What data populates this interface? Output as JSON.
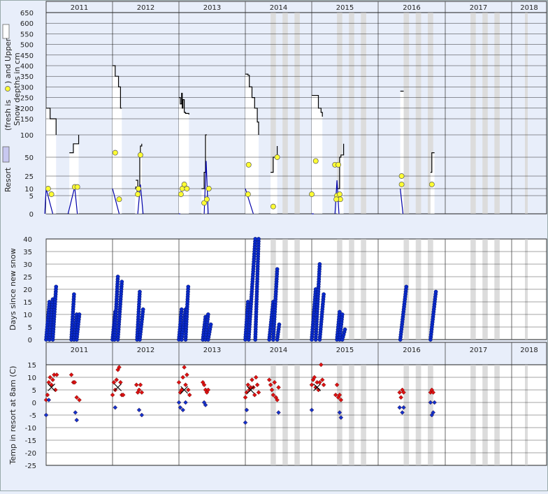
{
  "years": [
    "2011",
    "2012",
    "2013",
    "2014",
    "2015",
    "2016",
    "2017",
    "2018"
  ],
  "colors": {
    "background": "#e8eefa",
    "plot_bg": "#ffffff",
    "upper_depth_line": "#000000",
    "resort_depth_line": "#0000aa",
    "resort_fill": "#c8c8f0",
    "fresh_snow_marker": "#ffff33",
    "days_marker": "#0a2acc",
    "temp_warm": "#dd1111",
    "temp_cold": "#1133cc",
    "no_data_band": "#dcdcdc",
    "grid": "#000000"
  },
  "chart_data": [
    {
      "type": "area",
      "panel": "snow-depth",
      "ylabel_parts": [
        "Resort",
        "(fresh is",
        ")  and Upper",
        "Snow depths in cm"
      ],
      "yticks": [
        0,
        5,
        10,
        25,
        50,
        100,
        150,
        200,
        250,
        300,
        350,
        400,
        450,
        500,
        550,
        600,
        650
      ],
      "ylim": [
        0,
        650
      ],
      "upper_depth_segments": [
        [
          [
            2011.0,
            200
          ],
          [
            2011.05,
            200
          ],
          [
            2011.06,
            150
          ],
          [
            2011.14,
            150
          ],
          [
            2011.15,
            100
          ]
        ],
        [
          [
            2011.35,
            60
          ],
          [
            2011.4,
            60
          ],
          [
            2011.41,
            80
          ],
          [
            2011.48,
            80
          ],
          [
            2011.49,
            100
          ]
        ],
        [
          [
            2012.0,
            400
          ],
          [
            2012.03,
            400
          ],
          [
            2012.04,
            350
          ],
          [
            2012.08,
            350
          ],
          [
            2012.09,
            300
          ],
          [
            2012.12,
            200
          ],
          [
            2012.14,
            200
          ]
        ],
        [
          [
            2012.35,
            20
          ],
          [
            2012.38,
            12
          ],
          [
            2012.41,
            60
          ],
          [
            2012.42,
            75
          ],
          [
            2012.44,
            80
          ]
        ],
        [
          [
            2012.34,
            10
          ],
          [
            2012.35,
            12
          ],
          [
            2012.37,
            8
          ]
        ],
        [
          [
            2013.0,
            250
          ],
          [
            2013.02,
            220
          ],
          [
            2013.04,
            270
          ],
          [
            2013.05,
            200
          ],
          [
            2013.06,
            240
          ],
          [
            2013.08,
            180
          ],
          [
            2013.1,
            175
          ],
          [
            2013.12,
            175
          ],
          [
            2013.15,
            170
          ]
        ],
        [
          [
            2013.34,
            10
          ],
          [
            2013.38,
            30
          ],
          [
            2013.4,
            100
          ],
          [
            2013.42,
            100
          ]
        ],
        [
          [
            2014.0,
            360
          ],
          [
            2014.04,
            355
          ],
          [
            2014.06,
            300
          ],
          [
            2014.1,
            250
          ],
          [
            2014.14,
            200
          ],
          [
            2014.18,
            140
          ],
          [
            2014.2,
            100
          ]
        ],
        [
          [
            2014.38,
            30
          ],
          [
            2014.42,
            50
          ],
          [
            2014.46,
            50
          ],
          [
            2014.48,
            75
          ]
        ],
        [
          [
            2015.0,
            260
          ],
          [
            2015.08,
            260
          ],
          [
            2015.1,
            200
          ],
          [
            2015.14,
            180
          ],
          [
            2015.16,
            160
          ]
        ],
        [
          [
            2015.38,
            10
          ],
          [
            2015.42,
            50
          ],
          [
            2015.44,
            55
          ],
          [
            2015.48,
            80
          ]
        ],
        [
          [
            2016.33,
            280
          ],
          [
            2016.38,
            280
          ]
        ],
        [
          [
            2016.78,
            30
          ],
          [
            2016.8,
            60
          ],
          [
            2016.84,
            60
          ]
        ]
      ],
      "resort_depth_segments": [
        [
          [
            2010.98,
            0
          ],
          [
            2011.0,
            10
          ],
          [
            2011.1,
            0
          ]
        ],
        [
          [
            2011.33,
            0
          ],
          [
            2011.43,
            12
          ],
          [
            2011.47,
            0
          ]
        ],
        [
          [
            2012.0,
            10
          ],
          [
            2012.1,
            0
          ]
        ],
        [
          [
            2012.38,
            0
          ],
          [
            2012.42,
            15
          ],
          [
            2012.46,
            0
          ]
        ],
        [
          [
            2013.0,
            0
          ],
          [
            2013.02,
            0
          ]
        ],
        [
          [
            2013.38,
            0
          ],
          [
            2013.41,
            45
          ],
          [
            2013.44,
            0
          ]
        ],
        [
          [
            2014.0,
            10
          ],
          [
            2014.12,
            0
          ]
        ],
        [
          [
            2015.0,
            0
          ],
          [
            2015.03,
            0
          ]
        ],
        [
          [
            2015.35,
            0
          ],
          [
            2015.38,
            20
          ],
          [
            2015.41,
            0
          ]
        ],
        [
          [
            2016.33,
            10
          ],
          [
            2016.37,
            0
          ]
        ]
      ],
      "fresh_snow_points": [
        [
          2011.03,
          10
        ],
        [
          2011.08,
          6
        ],
        [
          2011.43,
          12
        ],
        [
          2011.47,
          12
        ],
        [
          2012.04,
          60
        ],
        [
          2012.1,
          4
        ],
        [
          2012.38,
          6
        ],
        [
          2012.39,
          10
        ],
        [
          2012.42,
          55
        ],
        [
          2013.03,
          6
        ],
        [
          2013.05,
          10
        ],
        [
          2013.08,
          15
        ],
        [
          2013.12,
          10
        ],
        [
          2013.38,
          3
        ],
        [
          2013.42,
          4
        ],
        [
          2013.45,
          10
        ],
        [
          2014.05,
          40
        ],
        [
          2014.04,
          6
        ],
        [
          2014.42,
          2
        ],
        [
          2014.48,
          50
        ],
        [
          2015.0,
          6
        ],
        [
          2015.06,
          45
        ],
        [
          2015.35,
          40
        ],
        [
          2015.4,
          40
        ],
        [
          2015.38,
          5
        ],
        [
          2015.42,
          6
        ],
        [
          2015.43,
          4
        ],
        [
          2015.37,
          4
        ],
        [
          2016.35,
          25
        ],
        [
          2016.35,
          15
        ],
        [
          2016.8,
          15
        ]
      ],
      "shaded_bands": [
        [
          2014.38,
          2014.46
        ],
        [
          2014.56,
          2014.64
        ],
        [
          2014.74,
          2014.82
        ],
        [
          2015.38,
          2015.46
        ],
        [
          2015.56,
          2015.64
        ],
        [
          2015.74,
          2015.82
        ],
        [
          2016.38,
          2016.46
        ],
        [
          2016.56,
          2016.64
        ],
        [
          2016.74,
          2016.82
        ],
        [
          2017.38,
          2017.46
        ],
        [
          2017.56,
          2017.64
        ],
        [
          2017.74,
          2017.82
        ],
        [
          2018.38,
          2018.46
        ]
      ]
    },
    {
      "type": "scatter",
      "panel": "days-since-new-snow",
      "ylabel": "Days since new snow",
      "yticks": [
        0,
        5,
        10,
        15,
        20,
        25,
        30,
        35,
        40
      ],
      "ylim": [
        0,
        40
      ],
      "ramps": [
        [
          2011.0,
          0,
          2011.05,
          15
        ],
        [
          2011.05,
          0,
          2011.1,
          16
        ],
        [
          2011.1,
          0,
          2011.15,
          21
        ],
        [
          2011.38,
          0,
          2011.42,
          18
        ],
        [
          2011.42,
          0,
          2011.46,
          10
        ],
        [
          2011.46,
          0,
          2011.5,
          10
        ],
        [
          2012.0,
          0,
          2012.04,
          11
        ],
        [
          2012.03,
          0,
          2012.08,
          25
        ],
        [
          2012.08,
          0,
          2012.14,
          23
        ],
        [
          2012.37,
          0,
          2012.41,
          19
        ],
        [
          2012.41,
          0,
          2012.46,
          12
        ],
        [
          2013.0,
          0,
          2013.04,
          12
        ],
        [
          2013.04,
          0,
          2013.1,
          12
        ],
        [
          2013.1,
          0,
          2013.14,
          21
        ],
        [
          2013.36,
          0,
          2013.4,
          9
        ],
        [
          2013.4,
          0,
          2013.44,
          10
        ],
        [
          2013.44,
          0,
          2013.48,
          6
        ],
        [
          2014.0,
          0,
          2014.04,
          15
        ],
        [
          2014.05,
          0,
          2014.15,
          40
        ],
        [
          2014.15,
          0,
          2014.2,
          40
        ],
        [
          2014.36,
          0,
          2014.42,
          15
        ],
        [
          2014.42,
          0,
          2014.48,
          28
        ],
        [
          2014.48,
          0,
          2014.51,
          6
        ],
        [
          2015.0,
          0,
          2015.06,
          20
        ],
        [
          2015.06,
          0,
          2015.12,
          30
        ],
        [
          2015.12,
          0,
          2015.18,
          18
        ],
        [
          2015.38,
          0,
          2015.42,
          11
        ],
        [
          2015.42,
          0,
          2015.46,
          10
        ],
        [
          2015.46,
          0,
          2015.5,
          4
        ],
        [
          2016.33,
          0,
          2016.42,
          21
        ],
        [
          2016.78,
          0,
          2016.86,
          19
        ]
      ]
    },
    {
      "type": "scatter",
      "panel": "temperature",
      "ylabel": "Temp in resort at 8am (C)",
      "yticks": [
        15,
        10,
        5,
        0,
        -5,
        -10,
        -15,
        -20,
        -25
      ],
      "ylim": [
        -25,
        15
      ],
      "warm_points": [
        [
          2011.0,
          1
        ],
        [
          2011.02,
          3
        ],
        [
          2011.04,
          8
        ],
        [
          2011.06,
          10
        ],
        [
          2011.08,
          7
        ],
        [
          2011.1,
          9
        ],
        [
          2011.12,
          11
        ],
        [
          2011.14,
          5
        ],
        [
          2011.16,
          11
        ],
        [
          2011.38,
          11
        ],
        [
          2011.41,
          8
        ],
        [
          2011.43,
          8
        ],
        [
          2011.46,
          2
        ],
        [
          2011.5,
          1
        ],
        [
          2012.0,
          3
        ],
        [
          2012.02,
          8
        ],
        [
          2012.04,
          5
        ],
        [
          2012.06,
          9
        ],
        [
          2012.08,
          13
        ],
        [
          2012.1,
          14
        ],
        [
          2012.12,
          8
        ],
        [
          2012.14,
          3
        ],
        [
          2012.16,
          3
        ],
        [
          2012.36,
          7
        ],
        [
          2012.38,
          4
        ],
        [
          2012.4,
          5
        ],
        [
          2012.42,
          7
        ],
        [
          2012.44,
          4
        ],
        [
          2013.0,
          8
        ],
        [
          2013.02,
          4
        ],
        [
          2013.04,
          5
        ],
        [
          2013.06,
          10
        ],
        [
          2013.08,
          14
        ],
        [
          2013.1,
          7
        ],
        [
          2013.12,
          11
        ],
        [
          2013.14,
          5
        ],
        [
          2013.16,
          3
        ],
        [
          2013.36,
          8
        ],
        [
          2013.38,
          7
        ],
        [
          2013.4,
          5
        ],
        [
          2013.42,
          4
        ],
        [
          2013.44,
          5
        ],
        [
          2014.0,
          2
        ],
        [
          2014.02,
          4
        ],
        [
          2014.04,
          7
        ],
        [
          2014.06,
          5
        ],
        [
          2014.08,
          6
        ],
        [
          2014.1,
          9
        ],
        [
          2014.12,
          6
        ],
        [
          2014.14,
          3
        ],
        [
          2014.16,
          10
        ],
        [
          2014.18,
          7
        ],
        [
          2014.2,
          4
        ],
        [
          2014.36,
          9
        ],
        [
          2014.38,
          7
        ],
        [
          2014.4,
          5
        ],
        [
          2014.42,
          3
        ],
        [
          2014.44,
          8
        ],
        [
          2014.46,
          2
        ],
        [
          2014.48,
          1
        ],
        [
          2014.5,
          6
        ],
        [
          2015.0,
          7
        ],
        [
          2015.02,
          9
        ],
        [
          2015.04,
          10
        ],
        [
          2015.06,
          6
        ],
        [
          2015.08,
          8
        ],
        [
          2015.1,
          5
        ],
        [
          2015.12,
          8
        ],
        [
          2015.14,
          15
        ],
        [
          2015.16,
          9
        ],
        [
          2015.18,
          7
        ],
        [
          2015.36,
          3
        ],
        [
          2015.38,
          7
        ],
        [
          2015.4,
          2
        ],
        [
          2015.42,
          3
        ],
        [
          2015.44,
          1
        ],
        [
          2016.32,
          4
        ],
        [
          2016.34,
          2
        ],
        [
          2016.36,
          5
        ],
        [
          2016.38,
          4
        ],
        [
          2016.78,
          4
        ],
        [
          2016.8,
          5
        ],
        [
          2016.82,
          4
        ]
      ],
      "cold_points": [
        [
          2011.0,
          -5
        ],
        [
          2011.04,
          1
        ],
        [
          2011.44,
          -4
        ],
        [
          2011.46,
          -7
        ],
        [
          2012.04,
          -2
        ],
        [
          2012.4,
          -3
        ],
        [
          2012.44,
          -5
        ],
        [
          2013.0,
          0
        ],
        [
          2013.02,
          -2
        ],
        [
          2013.06,
          -3
        ],
        [
          2013.1,
          0
        ],
        [
          2013.38,
          0
        ],
        [
          2013.4,
          -1
        ],
        [
          2014.0,
          -8
        ],
        [
          2014.02,
          -3
        ],
        [
          2014.5,
          -4
        ],
        [
          2015.0,
          -3
        ],
        [
          2015.42,
          -4
        ],
        [
          2015.44,
          -6
        ],
        [
          2016.32,
          -2
        ],
        [
          2016.36,
          -4
        ],
        [
          2016.38,
          -2
        ],
        [
          2016.78,
          0
        ],
        [
          2016.8,
          -5
        ],
        [
          2016.82,
          -4
        ],
        [
          2016.84,
          0
        ]
      ],
      "trend_marks": [
        [
          2011.08,
          6
        ],
        [
          2012.08,
          6
        ],
        [
          2013.08,
          5
        ],
        [
          2014.08,
          5
        ],
        [
          2015.08,
          6
        ]
      ]
    }
  ]
}
